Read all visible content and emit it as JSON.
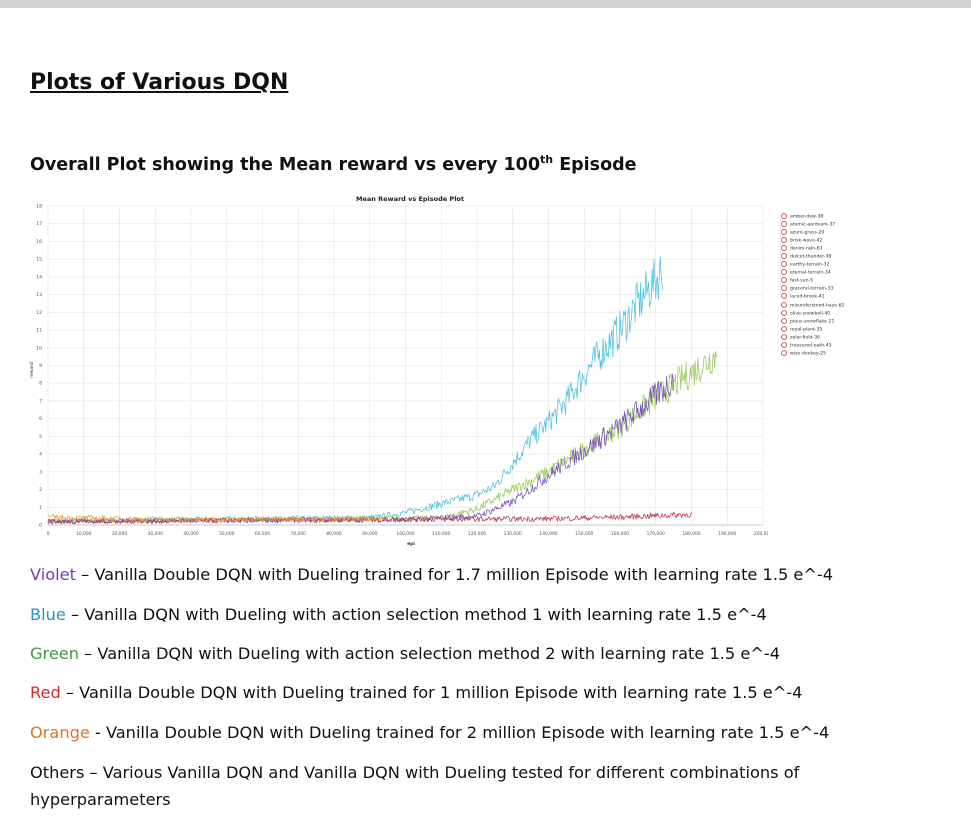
{
  "page": {
    "title": "Plots of Various DQN",
    "subtitle_main": "Overall Plot showing the Mean reward vs every 100",
    "subtitle_sup": "th",
    "subtitle_end": " Episode"
  },
  "chart_data": {
    "type": "line",
    "title": "Mean Reward vs Episode Plot",
    "xlabel": "epi",
    "ylabel": "reward",
    "xlim": [
      0,
      200000
    ],
    "ylim": [
      0,
      18
    ],
    "x_ticks": [
      "0",
      "10,000",
      "20,000",
      "30,000",
      "40,000",
      "50,000",
      "60,000",
      "70,000",
      "80,000",
      "90,000",
      "100,000",
      "110,000",
      "120,000",
      "130,000",
      "140,000",
      "150,000",
      "160,000",
      "170,000",
      "180,000",
      "190,000",
      "200,000"
    ],
    "y_ticks": [
      "0",
      "1",
      "2",
      "3",
      "4",
      "5",
      "6",
      "7",
      "8",
      "9",
      "10",
      "11",
      "12",
      "13",
      "14",
      "15",
      "16",
      "17",
      "18"
    ],
    "grid": true,
    "legend_position": "right",
    "legend": [
      "amber-dew-38",
      "atomic-aardvark-37",
      "azure-grass-20",
      "brisk-wave-42",
      "denim-rain-63",
      "dulcet-thunder-38",
      "earthy-terrain-32",
      "eternal-terrain-34",
      "fast-sun-5",
      "graceful-terrain-33",
      "laced-brook-41",
      "misunderstood-haze-62",
      "olive-snowball-40",
      "pious-snowflake-21",
      "royal-plant-35",
      "solar-field-36",
      "treasured-oath-45",
      "wise-donkey-25"
    ],
    "colors": {
      "violet": "#7a4fb8",
      "blue": "#4fc0dc",
      "green": "#98c95a",
      "red": "#c0344e",
      "orange": "#f0a030",
      "purple_red": "#8a3a6a"
    },
    "series": [
      {
        "color": "#4fc0dc",
        "points": [
          [
            0,
            0.25
          ],
          [
            90000,
            0.4
          ],
          [
            100000,
            0.7
          ],
          [
            110000,
            1.2
          ],
          [
            120000,
            1.7
          ],
          [
            125000,
            2.2
          ],
          [
            130000,
            3.5
          ],
          [
            135000,
            4.8
          ],
          [
            140000,
            5.8
          ],
          [
            145000,
            7.0
          ],
          [
            150000,
            8.5
          ],
          [
            155000,
            9.8
          ],
          [
            160000,
            11.0
          ],
          [
            165000,
            12.5
          ],
          [
            170000,
            13.8
          ],
          [
            172000,
            14.5
          ]
        ]
      },
      {
        "color": "#98c95a",
        "points": [
          [
            0,
            0.2
          ],
          [
            110000,
            0.4
          ],
          [
            120000,
            0.9
          ],
          [
            130000,
            2.0
          ],
          [
            140000,
            3.0
          ],
          [
            150000,
            4.3
          ],
          [
            160000,
            5.5
          ],
          [
            170000,
            7.2
          ],
          [
            180000,
            8.6
          ],
          [
            187000,
            9.6
          ]
        ]
      },
      {
        "color": "#7a4fb8",
        "points": [
          [
            0,
            0.2
          ],
          [
            100000,
            0.3
          ],
          [
            120000,
            0.5
          ],
          [
            130000,
            1.3
          ],
          [
            140000,
            2.8
          ],
          [
            150000,
            4.2
          ],
          [
            160000,
            5.6
          ],
          [
            170000,
            7.3
          ],
          [
            175000,
            8.2
          ]
        ]
      },
      {
        "color": "#c0344e",
        "points": [
          [
            0,
            0.2
          ],
          [
            90000,
            0.3
          ],
          [
            140000,
            0.35
          ],
          [
            160000,
            0.45
          ],
          [
            180000,
            0.6
          ]
        ]
      },
      {
        "color": "#f0a030",
        "points": [
          [
            0,
            0.45
          ],
          [
            20000,
            0.35
          ],
          [
            50000,
            0.3
          ],
          [
            80000,
            0.35
          ],
          [
            95000,
            0.4
          ]
        ]
      }
    ]
  },
  "descriptions": [
    {
      "key": "Violet",
      "text": " – Vanilla Double DQN with Dueling trained for 1.7 million Episode with learning rate 1.5 e^-4"
    },
    {
      "key": "Blue",
      "text": " – Vanilla DQN with Dueling with action selection method 1 with learning rate 1.5 e^-4"
    },
    {
      "key": "Green",
      "text": " – Vanilla DQN with Dueling with action selection method 2 with learning rate 1.5 e^-4"
    },
    {
      "key": "Red",
      "text": " – Vanilla Double DQN with Dueling trained for 1 million Episode with learning rate 1.5 e^-4"
    },
    {
      "key": "Orange",
      "text": " - Vanilla Double DQN with Dueling trained for 2 million Episode with learning rate 1.5 e^-4"
    }
  ],
  "others": "Others – Various Vanilla DQN and Vanilla DQN with Dueling tested for different combinations of hyperparameters"
}
